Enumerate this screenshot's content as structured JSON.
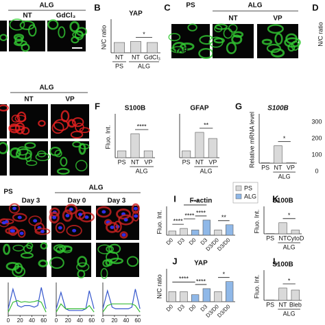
{
  "top_images": {
    "alg": "ALG",
    "nt": "NT",
    "gdcl3": "GdCl₃"
  },
  "c_images": {
    "ps": "PS",
    "alg": "ALG",
    "nt": "NT",
    "vp": "VP",
    "stain": "YAP"
  },
  "mid_images": {
    "alg": "ALG",
    "nt": "NT",
    "vp": "VP"
  },
  "bottom_images": {
    "ps": "PS",
    "alg": "ALG",
    "ps_day": "Day 3",
    "alg_day0": "Day 0",
    "alg_day3": "Day 3"
  },
  "letters": [
    "B",
    "C",
    "D",
    "F",
    "G",
    "I",
    "J",
    "K",
    "L"
  ],
  "d_ylabel": "N/C ratio",
  "h_ticks": [
    300,
    200,
    100,
    0
  ],
  "i_legend": [
    "PS",
    "ALG"
  ],
  "charts": [
    {
      "title": "YAP",
      "ylabel": "N/C ratio",
      "categories": [
        "NT",
        "NT",
        "GdCl₃"
      ],
      "groups": [
        "PS",
        "ALG"
      ],
      "values": [
        1.0,
        1.1,
        1.0
      ],
      "ylim": [
        0,
        3
      ],
      "sig": [
        "*"
      ],
      "color": "#d9d9d9"
    },
    {
      "title": "S100B",
      "ylabel": "Fluo. Int.",
      "categories": [
        "PS",
        "NT",
        "VP"
      ],
      "groups": [
        "ALG"
      ],
      "values": [
        1.0,
        3.5,
        1.0
      ],
      "ylim": [
        0,
        6
      ],
      "sig": [
        "****"
      ],
      "color": "#d9d9d9"
    },
    {
      "title": "GFAP",
      "categories": [
        "PS",
        "NT",
        "VP"
      ],
      "groups": [
        "ALG"
      ],
      "values": [
        1.0,
        3.7,
        2.8
      ],
      "ylim": [
        0,
        6
      ],
      "sig": [
        "**"
      ],
      "color": "#d9d9d9"
    },
    {
      "title": "S100B",
      "ylabel": "Relative mRNA level",
      "categories": [
        "PS",
        "NT",
        "VP"
      ],
      "groups": [
        "ALG"
      ],
      "values": [
        0.5,
        15,
        0.5
      ],
      "ylim": [
        0,
        40
      ],
      "sig": [
        "*"
      ],
      "color": "#d9d9d9"
    },
    {
      "title": "F-actin",
      "ylabel": "Fluo. Int.",
      "categories": [
        "D0",
        "D3",
        "D0",
        "D3",
        "D3/D0",
        "D3/D0"
      ],
      "values": [
        0.8,
        1.3,
        1.0,
        2.9,
        1.0,
        2.0
      ],
      "ylim": [
        0,
        5
      ],
      "sig": [
        "****",
        "***",
        "****",
        "****",
        "**"
      ],
      "colors": [
        "#d9d9d9",
        "#d9d9d9",
        "#8fb8e8",
        "#8fb8e8",
        "#d9d9d9",
        "#8fb8e8"
      ]
    },
    {
      "title": "YAP",
      "ylabel": "N/C ratio",
      "categories": [
        "D0",
        "D3",
        "D0",
        "D3",
        "D3/D0",
        "D3/D0"
      ],
      "values": [
        1.0,
        1.0,
        0.7,
        1.3,
        1.0,
        2.0
      ],
      "ylim": [
        0,
        3
      ],
      "sig": [
        "****",
        "****",
        "*"
      ],
      "colors": [
        "#d9d9d9",
        "#d9d9d9",
        "#8fb8e8",
        "#8fb8e8",
        "#d9d9d9",
        "#8fb8e8"
      ]
    },
    {
      "title": "S100B",
      "ylabel": "Fluo. Int.",
      "categories": [
        "PS",
        "NT",
        "CytoD"
      ],
      "groups": [
        "ALG"
      ],
      "values": [
        0.5,
        18,
        6
      ],
      "ylim": [
        0,
        40
      ],
      "sig": [
        "*"
      ],
      "color": "#d9d9d9"
    },
    {
      "title": "S100B",
      "ylabel": "Fluo. Int.",
      "categories": [
        "PS",
        "NT",
        "Bleb"
      ],
      "groups": [
        "ALG"
      ],
      "values": [
        0.5,
        18,
        15
      ],
      "ylim": [
        0,
        40
      ],
      "sig": [
        "*"
      ],
      "color": "#d9d9d9"
    }
  ],
  "profiles": {
    "x": [
      0,
      8,
      16,
      22,
      28,
      36,
      44,
      50,
      56,
      64
    ],
    "xticks": [
      0,
      20,
      40,
      60
    ],
    "xlim": [
      0,
      65
    ],
    "ylim": [
      0,
      1
    ],
    "plots": [
      {
        "blue": [
          0.2,
          0.8,
          0.3,
          0.25,
          0.3,
          0.3,
          0.25,
          0.3,
          0.85,
          0.2
        ],
        "green": [
          0.1,
          0.4,
          0.45,
          0.4,
          0.42,
          0.4,
          0.42,
          0.45,
          0.4,
          0.1
        ]
      },
      {
        "blue": [
          0.2,
          0.7,
          0.2,
          0.15,
          0.15,
          0.15,
          0.15,
          0.2,
          0.75,
          0.2
        ],
        "green": [
          0.1,
          0.35,
          0.2,
          0.2,
          0.2,
          0.2,
          0.2,
          0.2,
          0.3,
          0.1
        ]
      },
      {
        "blue": [
          0.2,
          0.75,
          0.25,
          0.2,
          0.2,
          0.2,
          0.2,
          0.25,
          0.8,
          0.2
        ],
        "green": [
          0.1,
          0.3,
          0.35,
          0.35,
          0.35,
          0.35,
          0.35,
          0.35,
          0.3,
          0.1
        ]
      }
    ]
  }
}
